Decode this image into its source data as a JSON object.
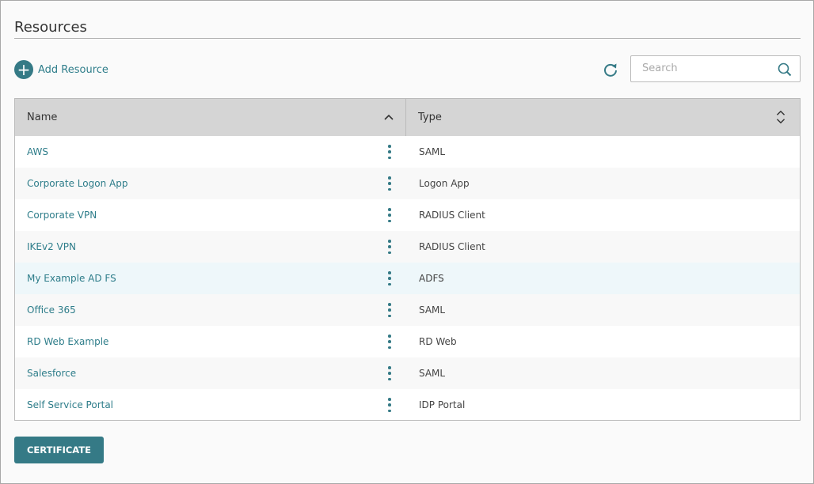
{
  "page": {
    "title": "Resources"
  },
  "toolbar": {
    "add_label": "Add Resource",
    "search_placeholder": "Search",
    "search_value": ""
  },
  "table": {
    "columns": [
      "Name",
      "Type"
    ],
    "rows": [
      {
        "name": "AWS",
        "type": "SAML"
      },
      {
        "name": "Corporate Logon App",
        "type": "Logon App"
      },
      {
        "name": "Corporate VPN",
        "type": "RADIUS Client"
      },
      {
        "name": "IKEv2 VPN",
        "type": "RADIUS Client"
      },
      {
        "name": "My Example AD FS",
        "type": "ADFS"
      },
      {
        "name": "Office 365",
        "type": "SAML"
      },
      {
        "name": "RD Web Example",
        "type": "RD Web"
      },
      {
        "name": "Salesforce",
        "type": "SAML"
      },
      {
        "name": "Self Service Portal",
        "type": "IDP Portal"
      }
    ],
    "highlighted_row": 4
  },
  "footer": {
    "certificate_label": "CERTIFICATE"
  },
  "colors": {
    "accent": "#357a86",
    "link": "#2e7d8a",
    "header_bg": "#d5d5d5"
  }
}
